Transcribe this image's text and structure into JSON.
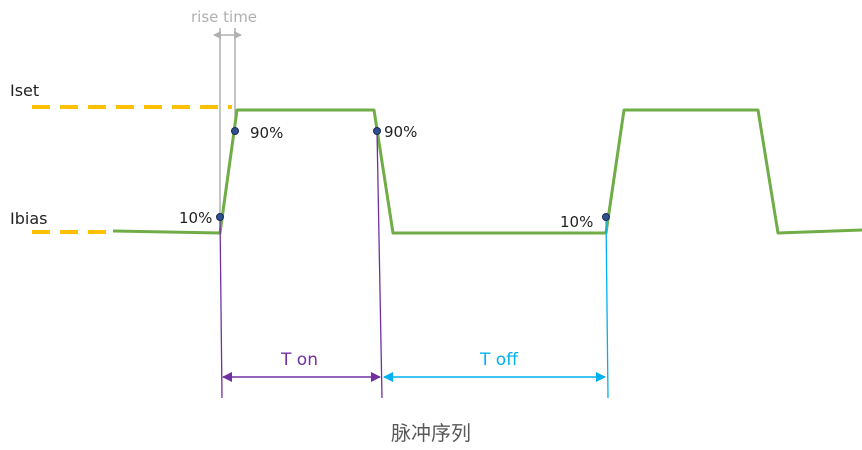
{
  "labels": {
    "rise_time": "rise time",
    "iset": "Iset",
    "ibias": "Ibias",
    "pct_90_rise": "90%",
    "pct_90_fall": "90%",
    "pct_10_rise": "10%",
    "pct_10_second_rise": "10%",
    "t_on": "T on",
    "t_off": "T off",
    "caption": "脉冲序列"
  },
  "colors": {
    "signal": "#70ad47",
    "level_dash": "#ffc000",
    "rise_guide": "#b0b0b0",
    "t_on": "#7030a0",
    "t_off": "#00b0f0",
    "marker_fill": "#2f4f8f",
    "caption": "#595959"
  }
}
